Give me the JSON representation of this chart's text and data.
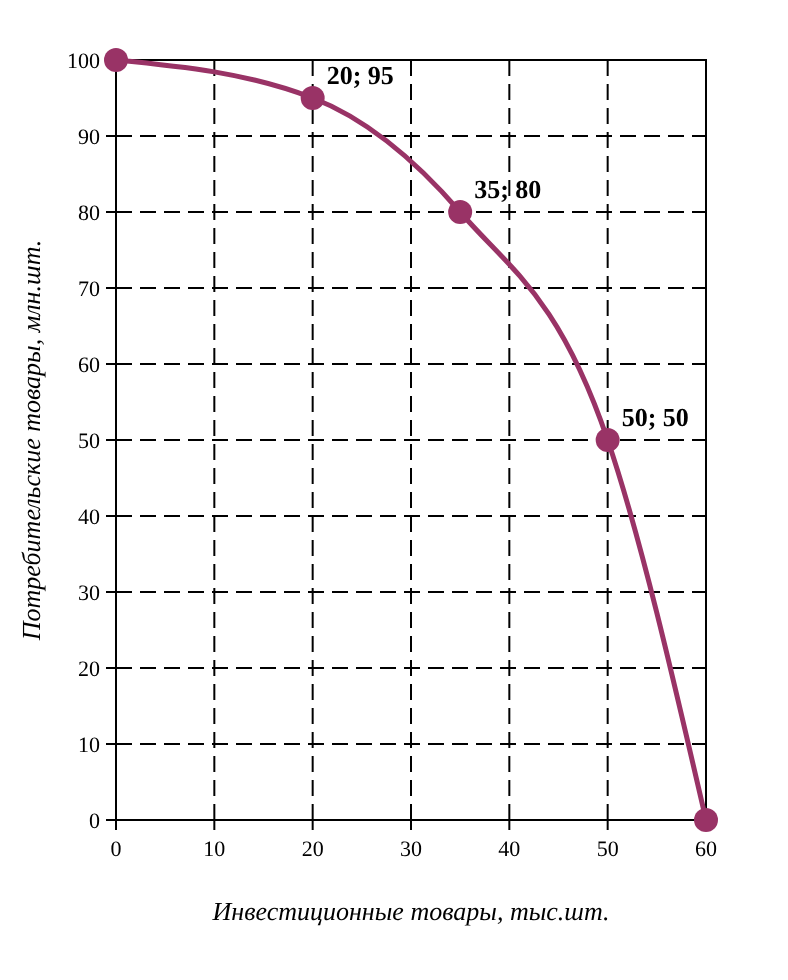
{
  "chart_data": {
    "type": "line",
    "xlabel": "Инвестиционные товары, тыс.шт.",
    "ylabel": "Потребительские товары, млн.шт.",
    "x": [
      0,
      20,
      35,
      50,
      60
    ],
    "series": [
      {
        "color": "#993366",
        "values": [
          100,
          95,
          80,
          50,
          0
        ]
      }
    ],
    "xlim": [
      0,
      60
    ],
    "xticks": [
      0,
      10,
      20,
      30,
      40,
      50,
      60
    ],
    "ylim": [
      0,
      100
    ],
    "yticks": [
      0,
      10,
      20,
      30,
      40,
      50,
      60,
      70,
      80,
      90,
      100
    ],
    "grid": true,
    "marker": "circle",
    "line_style": "solid",
    "annotations": [
      {
        "text": "20; 95",
        "x": 20,
        "y": 95
      },
      {
        "text": "35; 80",
        "x": 35,
        "y": 80
      },
      {
        "text": "50; 50",
        "x": 50,
        "y": 50
      }
    ]
  }
}
